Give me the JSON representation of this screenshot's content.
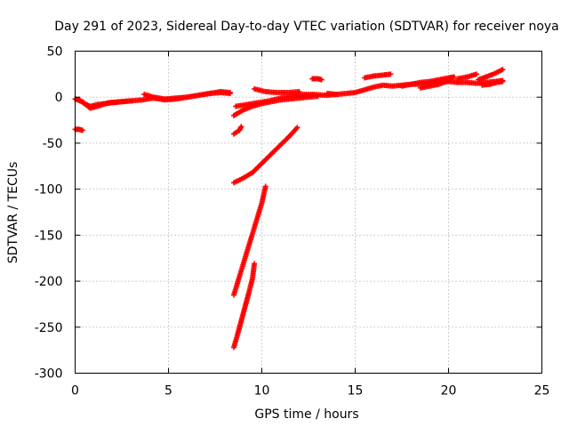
{
  "chart_data": {
    "type": "scatter",
    "title": "Day 291 of 2023, Sidereal Day-to-day VTEC variation (SDTVAR) for receiver noya",
    "xlabel": "GPS time / hours",
    "ylabel": "SDTVAR / TECUs",
    "xlim": [
      0,
      25
    ],
    "ylim": [
      -300,
      50
    ],
    "xticks": [
      0,
      5,
      10,
      15,
      20,
      25
    ],
    "yticks": [
      -300,
      -250,
      -200,
      -150,
      -100,
      -50,
      0,
      50
    ],
    "grid": true,
    "marker": "plus",
    "color": "#ff0000",
    "segments": [
      {
        "x": [
          0.0,
          0.4,
          0.8,
          1.2,
          1.8,
          2.4,
          3.0,
          3.6,
          4.2,
          4.8,
          5.4,
          6.0,
          6.6,
          7.2,
          7.8,
          8.3
        ],
        "y": [
          -2,
          -5,
          -12,
          -10,
          -6,
          -5,
          -4,
          -3,
          -1,
          -3,
          -2,
          0,
          2,
          4,
          6,
          5
        ]
      },
      {
        "x": [
          0.0,
          0.2,
          0.4
        ],
        "y": [
          -35,
          -35,
          -36
        ]
      },
      {
        "x": [
          0.2,
          0.5,
          0.8,
          1.2,
          1.6,
          2.0,
          2.5,
          3.0
        ],
        "y": [
          -3,
          -7,
          -10,
          -8,
          -7,
          -6,
          -5,
          -4
        ]
      },
      {
        "x": [
          3.7,
          4.2,
          4.8,
          5.4,
          6.0,
          6.6,
          7.2,
          7.8,
          8.3
        ],
        "y": [
          3,
          0,
          -2,
          -1,
          0,
          2,
          4,
          5,
          4
        ]
      },
      {
        "x": [
          8.5,
          9.0,
          9.5,
          10.0,
          10.5,
          11.0,
          11.5,
          12.0,
          12.5,
          13.0
        ],
        "y": [
          -20,
          -14,
          -10,
          -7,
          -5,
          -3,
          -2,
          -1,
          0,
          1
        ]
      },
      {
        "x": [
          8.6,
          9.2,
          9.8,
          10.4,
          11.0,
          11.6,
          12.2,
          12.8,
          13.4,
          14.0
        ],
        "y": [
          -10,
          -8,
          -6,
          -4,
          -1,
          1,
          3,
          3,
          2,
          3
        ]
      },
      {
        "x": [
          9.6,
          10.2,
          10.8,
          11.4,
          12.0
        ],
        "y": [
          9,
          6,
          5,
          5,
          6
        ]
      },
      {
        "x": [
          12.7,
          13.0,
          13.2
        ],
        "y": [
          20,
          20,
          19
        ]
      },
      {
        "x": [
          13.5,
          14.0,
          14.5,
          15.0,
          15.5,
          16.0,
          16.5,
          17.0,
          17.5,
          18.0,
          18.5,
          19.0,
          19.5,
          20.0,
          20.5
        ],
        "y": [
          4,
          3,
          4,
          5,
          8,
          11,
          13,
          12,
          13,
          14,
          14,
          15,
          16,
          17,
          16
        ]
      },
      {
        "x": [
          15.5,
          16.0,
          16.5,
          16.9
        ],
        "y": [
          21,
          23,
          24,
          25
        ]
      },
      {
        "x": [
          17.5,
          18.0,
          18.5,
          19.0,
          19.5,
          20.0,
          20.3
        ],
        "y": [
          12,
          14,
          16,
          17,
          19,
          21,
          22
        ]
      },
      {
        "x": [
          18.5,
          19.0,
          19.5,
          20.0
        ],
        "y": [
          10,
          12,
          14,
          18
        ]
      },
      {
        "x": [
          20.5,
          21.0,
          21.5,
          22.0,
          22.5,
          22.9
        ],
        "y": [
          16,
          16,
          15,
          16,
          17,
          18
        ]
      },
      {
        "x": [
          20.5,
          21.0,
          21.5
        ],
        "y": [
          20,
          22,
          25
        ]
      },
      {
        "x": [
          21.6,
          22.0,
          22.4,
          22.9
        ],
        "y": [
          19,
          22,
          25,
          30
        ]
      },
      {
        "x": [
          21.8,
          22.2,
          22.6,
          22.9
        ],
        "y": [
          13,
          14,
          16,
          17
        ]
      },
      {
        "x": [
          8.5,
          8.8,
          8.9
        ],
        "y": [
          -40,
          -36,
          -32
        ]
      },
      {
        "x": [
          8.5,
          9.0,
          9.5,
          10.0,
          10.5,
          11.0,
          11.5,
          11.9
        ],
        "y": [
          -93,
          -88,
          -82,
          -72,
          -62,
          -52,
          -42,
          -33
        ]
      },
      {
        "x": [
          8.5,
          8.8,
          9.1,
          9.4,
          9.7,
          10.0,
          10.2
        ],
        "y": [
          -215,
          -195,
          -175,
          -155,
          -135,
          -115,
          -97
        ]
      },
      {
        "x": [
          8.5,
          8.7,
          8.9,
          9.1,
          9.3,
          9.5,
          9.6
        ],
        "y": [
          -272,
          -258,
          -243,
          -228,
          -213,
          -197,
          -181
        ]
      }
    ]
  }
}
